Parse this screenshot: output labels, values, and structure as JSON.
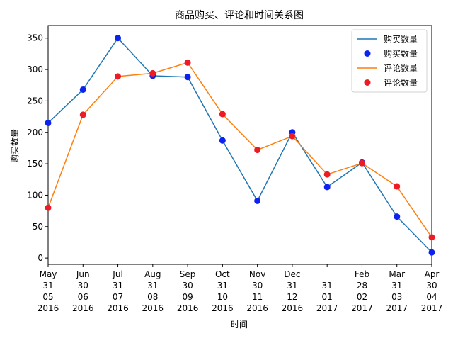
{
  "chart_data": {
    "type": "line",
    "title": "商品购买、评论和时间关系图",
    "xlabel": "时间",
    "ylabel": "购买数量",
    "ylim": [
      -10,
      370
    ],
    "y_ticks": [
      0,
      50,
      100,
      150,
      200,
      250,
      300,
      350
    ],
    "categories": [
      [
        "May",
        "31",
        "05",
        "2016"
      ],
      [
        "Jun",
        "30",
        "06",
        "2016"
      ],
      [
        "Jul",
        "31",
        "07",
        "2016"
      ],
      [
        "Aug",
        "31",
        "08",
        "2016"
      ],
      [
        "Sep",
        "30",
        "09",
        "2016"
      ],
      [
        "Oct",
        "31",
        "10",
        "2016"
      ],
      [
        "Nov",
        "30",
        "11",
        "2016"
      ],
      [
        "Dec",
        "31",
        "12",
        "2016"
      ],
      [
        "",
        "31",
        "01",
        "2017"
      ],
      [
        "Feb",
        "28",
        "02",
        "2017"
      ],
      [
        "Mar",
        "31",
        "03",
        "2017"
      ],
      [
        "Apr",
        "30",
        "04",
        "2017"
      ]
    ],
    "series": [
      {
        "name": "购买数量",
        "values": [
          215,
          268,
          350,
          290,
          288,
          187,
          91,
          200,
          113,
          152,
          66,
          9
        ],
        "line_color": "#1f77b4",
        "marker_color": "#0b22f0"
      },
      {
        "name": "评论数量",
        "values": [
          80,
          228,
          289,
          294,
          311,
          229,
          172,
          194,
          133,
          151,
          114,
          33
        ],
        "line_color": "#ff7f0e",
        "marker_color": "#ee1b24"
      }
    ],
    "legend": {
      "placement": "top-right",
      "entries": [
        {
          "label": "购买数量",
          "kind": "line",
          "series": 0
        },
        {
          "label": "购买数量",
          "kind": "marker",
          "series": 0
        },
        {
          "label": "评论数量",
          "kind": "line",
          "series": 1
        },
        {
          "label": "评论数量",
          "kind": "marker",
          "series": 1
        }
      ]
    },
    "grid": false
  }
}
